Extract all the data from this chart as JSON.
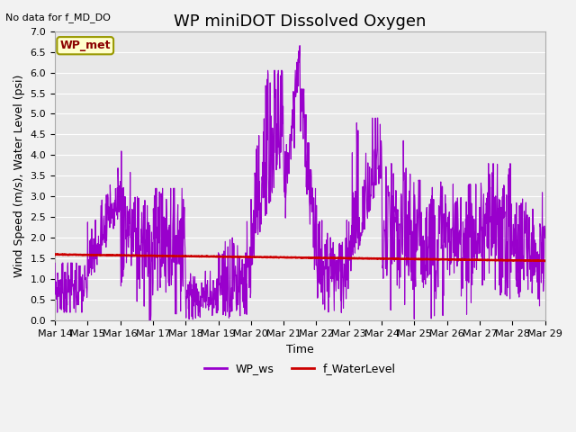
{
  "title": "WP miniDOT Dissolved Oxygen",
  "top_left_text": "No data for f_MD_DO",
  "legend_box_text": "WP_met",
  "xlabel": "Time",
  "ylabel": "Wind Speed (m/s), Water Level (psi)",
  "ylim": [
    0.0,
    7.0
  ],
  "yticks": [
    0.0,
    0.5,
    1.0,
    1.5,
    2.0,
    2.5,
    3.0,
    3.5,
    4.0,
    4.5,
    5.0,
    5.5,
    6.0,
    6.5,
    7.0
  ],
  "xtick_labels": [
    "Mar 14",
    "Mar 15",
    "Mar 16",
    "Mar 17",
    "Mar 18",
    "Mar 19",
    "Mar 20",
    "Mar 21",
    "Mar 22",
    "Mar 23",
    "Mar 24",
    "Mar 25",
    "Mar 26",
    "Mar 27",
    "Mar 28",
    "Mar 29"
  ],
  "fig_bg_color": "#f2f2f2",
  "plot_bg_color": "#e8e8e8",
  "ws_color": "#9900cc",
  "wl_color": "#cc0000",
  "legend_ws_label": "WP_ws",
  "legend_wl_label": "f_WaterLevel",
  "title_fontsize": 13,
  "axis_fontsize": 9,
  "tick_fontsize": 8,
  "ws_linewidth": 0.8,
  "wl_linewidth": 1.8,
  "grid_color": "#ffffff",
  "grid_linewidth": 0.8
}
